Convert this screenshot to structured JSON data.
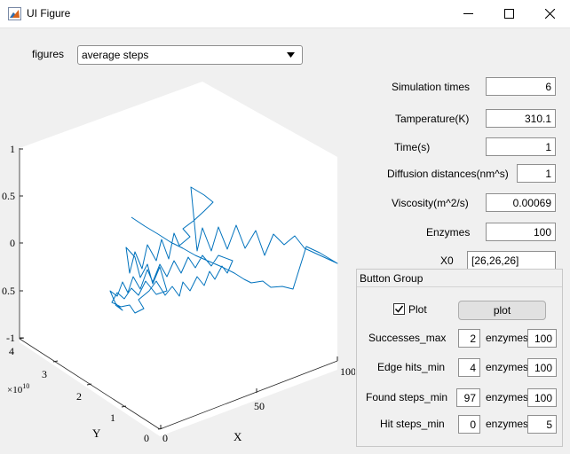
{
  "window": {
    "title": "UI Figure"
  },
  "figures": {
    "label": "figures",
    "selected": "average steps"
  },
  "fields": {
    "sim_times": {
      "label": "Simulation times",
      "value": "6"
    },
    "temperature": {
      "label": "Tamperature(K)",
      "value": "310.1"
    },
    "time": {
      "label": "Time(s)",
      "value": "1"
    },
    "diffusion": {
      "label": "Diffusion distances(nm^s)",
      "value": "1"
    },
    "viscosity": {
      "label": "Viscosity(m^2/s)",
      "value": "0.00069"
    },
    "enzymes": {
      "label": "Enzymes",
      "value": "100"
    },
    "x0": {
      "label": "X0",
      "value": "[26,26,26]"
    }
  },
  "group": {
    "title": "Button Group",
    "plot_checkbox_label": "Plot",
    "plot_checked": true,
    "plot_button": "plot",
    "enzymes_label": "enzymes",
    "rows": [
      {
        "label": "Successes_max",
        "value": "2",
        "enzymes": "100"
      },
      {
        "label": "Edge hits_min",
        "value": "4",
        "enzymes": "100"
      },
      {
        "label": "Found steps_min",
        "value": "97",
        "enzymes": "100"
      },
      {
        "label": "Hit steps_min",
        "value": "0",
        "enzymes": "5"
      }
    ]
  },
  "axes": {
    "z_ticks": [
      "1",
      "0.5",
      "0",
      "0.5",
      "-1"
    ],
    "y_ticks": [
      "4",
      "3",
      "2",
      "1",
      "0"
    ],
    "y_multiplier": "×10",
    "y_exponent": "10",
    "x_ticks": [
      "0",
      "50",
      "100"
    ],
    "xlabel": "X",
    "ylabel": "Y",
    "line_color": "#0072bd"
  }
}
